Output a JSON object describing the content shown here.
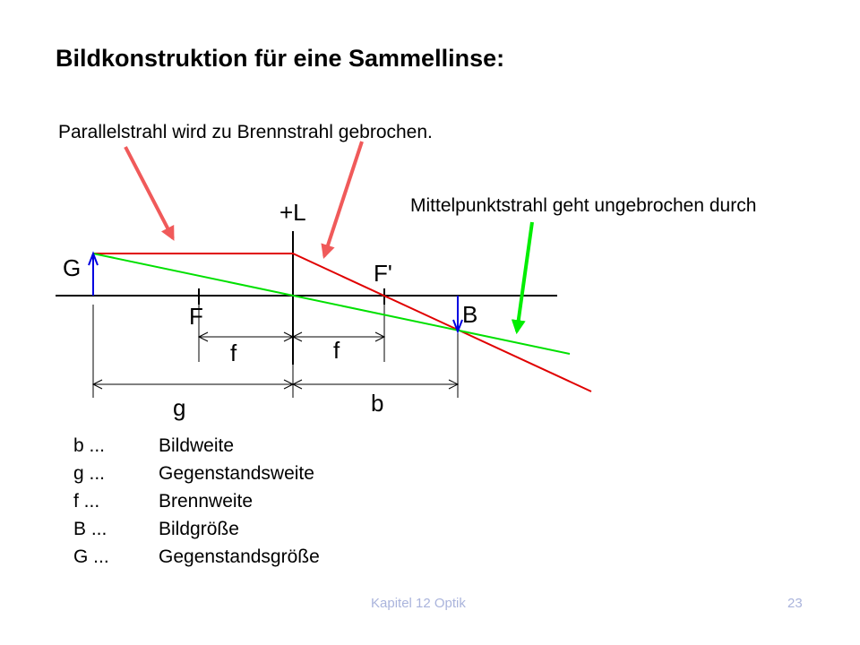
{
  "title": "Bildkonstruktion für eine Sammellinse:",
  "annotations": {
    "parallel_ray": "Parallelstrahl wird zu Brennstrahl gebrochen.",
    "center_ray": "Mittelpunktstrahl geht ungebrochen durch"
  },
  "diagram": {
    "labels": {
      "lens": "+L",
      "object": "G",
      "image": "B",
      "focal_left": "F",
      "focal_right": "F'",
      "focal_length_left": "f",
      "focal_length_right": "f",
      "object_distance": "g",
      "image_distance": "b"
    },
    "colors": {
      "parallel_ray": "#e00000",
      "center_ray": "#00e000",
      "object_arrow": "#0000e0",
      "pointer_red": "#f05a5a",
      "pointer_green": "#00ee00"
    }
  },
  "legend": [
    {
      "key": "b ...",
      "value": "Bildweite"
    },
    {
      "key": "g ...",
      "value": "Gegenstandsweite"
    },
    {
      "key": "f ...",
      "value": "Brennweite"
    },
    {
      "key": "B ...",
      "value": "Bildgröße"
    },
    {
      "key": "G ...",
      "value": "Gegenstandsgröße"
    }
  ],
  "footer": {
    "chapter": "Kapitel 12 Optik",
    "page_number": "23"
  }
}
